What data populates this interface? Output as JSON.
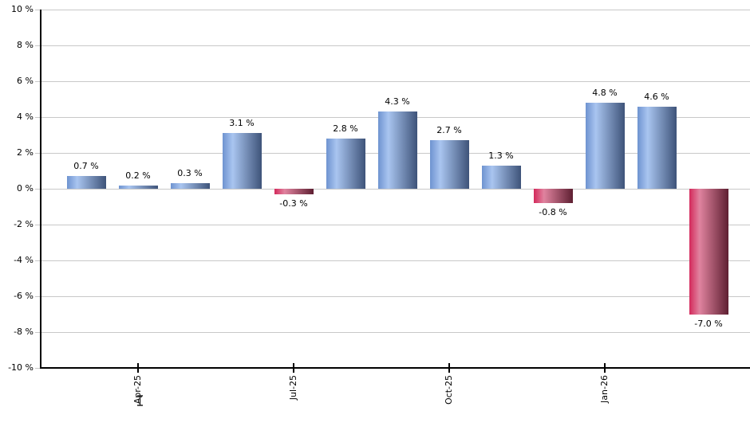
{
  "chart_data": {
    "type": "bar",
    "title": "",
    "xlabel": "",
    "ylabel": "",
    "unit": "%",
    "ylim": [
      -10,
      10
    ],
    "y_tick_step": 2,
    "grid": true,
    "legend": false,
    "y_ticks": [
      {
        "value": 10,
        "label": "10 %"
      },
      {
        "value": 8,
        "label": "8 %"
      },
      {
        "value": 6,
        "label": "6 %"
      },
      {
        "value": 4,
        "label": "4 %"
      },
      {
        "value": 2,
        "label": "2 %"
      },
      {
        "value": 0,
        "label": "0 %"
      },
      {
        "value": -2,
        "label": "-2 %"
      },
      {
        "value": -4,
        "label": "-4 %"
      },
      {
        "value": -6,
        "label": "-6 %"
      },
      {
        "value": -8,
        "label": "-8 %"
      },
      {
        "value": -10,
        "label": "-10 %"
      }
    ],
    "bars": [
      {
        "value": 0.7,
        "label": "0.7 %",
        "color": "positive"
      },
      {
        "value": 0.2,
        "label": "0.2 %",
        "color": "positive"
      },
      {
        "value": 0.3,
        "label": "0.3 %",
        "color": "positive"
      },
      {
        "value": 3.1,
        "label": "3.1 %",
        "color": "positive"
      },
      {
        "value": -0.3,
        "label": "-0.3 %",
        "color": "negative"
      },
      {
        "value": 2.8,
        "label": "2.8 %",
        "color": "positive"
      },
      {
        "value": 4.3,
        "label": "4.3 %",
        "color": "positive"
      },
      {
        "value": 2.7,
        "label": "2.7 %",
        "color": "positive"
      },
      {
        "value": 1.3,
        "label": "1.3 %",
        "color": "positive"
      },
      {
        "value": -0.8,
        "label": "-0.8 %",
        "color": "negative"
      },
      {
        "value": 4.8,
        "label": "4.8 %",
        "color": "positive"
      },
      {
        "value": 4.6,
        "label": "4.6 %",
        "color": "positive"
      },
      {
        "value": -7.0,
        "label": "-7.0 %",
        "color": "negative"
      }
    ],
    "x_ticks": [
      {
        "bar_index": 1,
        "label": "Apr-25"
      },
      {
        "bar_index": 4,
        "label": "Jul-25"
      },
      {
        "bar_index": 7,
        "label": "Oct-25"
      },
      {
        "bar_index": 10,
        "label": "Jan-26"
      }
    ],
    "colors": {
      "positive_gradient": [
        "#6e93d0",
        "#a9c5f0",
        "#3e5379"
      ],
      "negative_gradient": [
        "#d3295b",
        "#e0839f",
        "#5e1f31"
      ],
      "gridline": "#c8c8c8",
      "axis": "#000000",
      "text": "#000000",
      "background": "#ffffff"
    }
  },
  "cursor": {
    "icon": "ibeam-text-cursor"
  }
}
